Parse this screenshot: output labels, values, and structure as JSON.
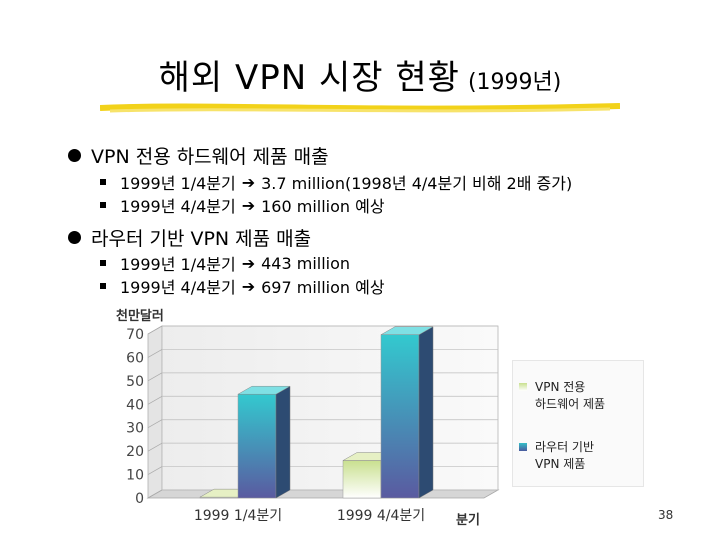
{
  "slide": {
    "title": "해외 VPN 시장 현황",
    "title_sub": "(1999년)",
    "page_number": "38",
    "accent_color": "#f2d21a"
  },
  "bullets": [
    {
      "text": "VPN 전용 하드웨어 제품 매출",
      "subs": [
        {
          "label": "1999년 1/4분기",
          "value": "3.7 million(1998년 4/4분기 비해 2배 증가)"
        },
        {
          "label": "1999년 4/4분기",
          "value": "160 million 예상"
        }
      ]
    },
    {
      "text": "라우터 기반 VPN 제품 매출",
      "subs": [
        {
          "label": "1999년 1/4분기",
          "value": "443 million"
        },
        {
          "label": "1999년 4/4분기",
          "value": "697 million 예상"
        }
      ]
    }
  ],
  "chart_data": {
    "type": "bar",
    "ylabel": "천만달러",
    "xlabel": "분기",
    "categories": [
      "1999 1/4분기",
      "1999 4/4분기"
    ],
    "ylim": [
      0,
      70
    ],
    "yticks": [
      0,
      10,
      20,
      30,
      40,
      50,
      60,
      70
    ],
    "grid": true,
    "legend_position": "right",
    "series": [
      {
        "name": "VPN 전용\n하드웨어 제품",
        "values": [
          0.37,
          16
        ],
        "color": "#d6e6a8"
      },
      {
        "name": "라우터 기반\nVPN 제품",
        "values": [
          44.3,
          69.7
        ],
        "color": "#35c0c8"
      }
    ]
  }
}
